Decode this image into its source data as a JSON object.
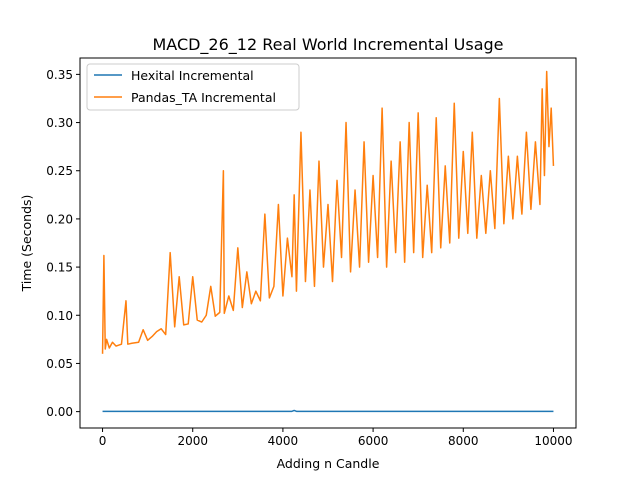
{
  "chart_data": {
    "type": "line",
    "title": "MACD_26_12 Real World Incremental Usage",
    "xlabel": "Adding n Candle",
    "ylabel": "Time (Seconds)",
    "xlim": [
      -500,
      10500
    ],
    "ylim": [
      -0.017,
      0.367
    ],
    "xticks": [
      0,
      2000,
      4000,
      6000,
      8000,
      10000
    ],
    "xtick_labels": [
      "0",
      "2000",
      "4000",
      "6000",
      "8000",
      "10000"
    ],
    "yticks": [
      0.0,
      0.05,
      0.1,
      0.15,
      0.2,
      0.25,
      0.3,
      0.35
    ],
    "ytick_labels": [
      "0.00",
      "0.05",
      "0.10",
      "0.15",
      "0.20",
      "0.25",
      "0.30",
      "0.35"
    ],
    "grid": false,
    "legend_position": "upper-left",
    "series": [
      {
        "name": "Hexital Incremental",
        "color": "#1f77b4",
        "x": [
          0,
          1000,
          2000,
          3000,
          4000,
          4200,
          4250,
          4300,
          5000,
          6000,
          7000,
          8000,
          9000,
          10000
        ],
        "y": [
          0.0003,
          0.0003,
          0.0003,
          0.0003,
          0.0003,
          0.0003,
          0.0012,
          0.0003,
          0.0003,
          0.0003,
          0.0003,
          0.0003,
          0.0003,
          0.0003
        ]
      },
      {
        "name": "Pandas_TA Incremental",
        "color": "#ff7f0e",
        "x": [
          0,
          30,
          60,
          90,
          150,
          220,
          300,
          420,
          520,
          560,
          650,
          800,
          900,
          1000,
          1100,
          1200,
          1300,
          1400,
          1500,
          1600,
          1700,
          1800,
          1900,
          2000,
          2100,
          2200,
          2300,
          2400,
          2500,
          2600,
          2680,
          2700,
          2800,
          2900,
          3000,
          3100,
          3200,
          3300,
          3400,
          3500,
          3600,
          3700,
          3800,
          3900,
          4000,
          4100,
          4200,
          4250,
          4300,
          4400,
          4500,
          4600,
          4700,
          4800,
          4900,
          5000,
          5100,
          5200,
          5300,
          5400,
          5500,
          5600,
          5700,
          5800,
          5900,
          6000,
          6100,
          6200,
          6300,
          6400,
          6500,
          6600,
          6700,
          6800,
          6900,
          7000,
          7100,
          7200,
          7300,
          7400,
          7500,
          7600,
          7700,
          7800,
          7900,
          8000,
          8100,
          8200,
          8300,
          8400,
          8500,
          8600,
          8700,
          8800,
          8900,
          9000,
          9100,
          9200,
          9300,
          9400,
          9500,
          9600,
          9700,
          9750,
          9800,
          9850,
          9900,
          9950,
          10000
        ],
        "y": [
          0.06,
          0.162,
          0.065,
          0.075,
          0.066,
          0.072,
          0.068,
          0.07,
          0.115,
          0.07,
          0.071,
          0.072,
          0.085,
          0.074,
          0.078,
          0.083,
          0.086,
          0.08,
          0.165,
          0.088,
          0.14,
          0.09,
          0.091,
          0.14,
          0.095,
          0.093,
          0.1,
          0.13,
          0.099,
          0.103,
          0.25,
          0.102,
          0.12,
          0.105,
          0.17,
          0.108,
          0.145,
          0.112,
          0.125,
          0.115,
          0.205,
          0.118,
          0.13,
          0.215,
          0.12,
          0.18,
          0.14,
          0.225,
          0.125,
          0.29,
          0.135,
          0.23,
          0.13,
          0.26,
          0.15,
          0.215,
          0.135,
          0.24,
          0.16,
          0.3,
          0.145,
          0.23,
          0.15,
          0.28,
          0.155,
          0.245,
          0.16,
          0.315,
          0.15,
          0.26,
          0.165,
          0.28,
          0.155,
          0.3,
          0.165,
          0.31,
          0.16,
          0.235,
          0.165,
          0.305,
          0.17,
          0.255,
          0.175,
          0.32,
          0.18,
          0.27,
          0.185,
          0.29,
          0.18,
          0.245,
          0.185,
          0.25,
          0.19,
          0.325,
          0.195,
          0.265,
          0.2,
          0.265,
          0.205,
          0.29,
          0.21,
          0.28,
          0.215,
          0.335,
          0.245,
          0.353,
          0.275,
          0.315,
          0.255
        ]
      }
    ]
  }
}
